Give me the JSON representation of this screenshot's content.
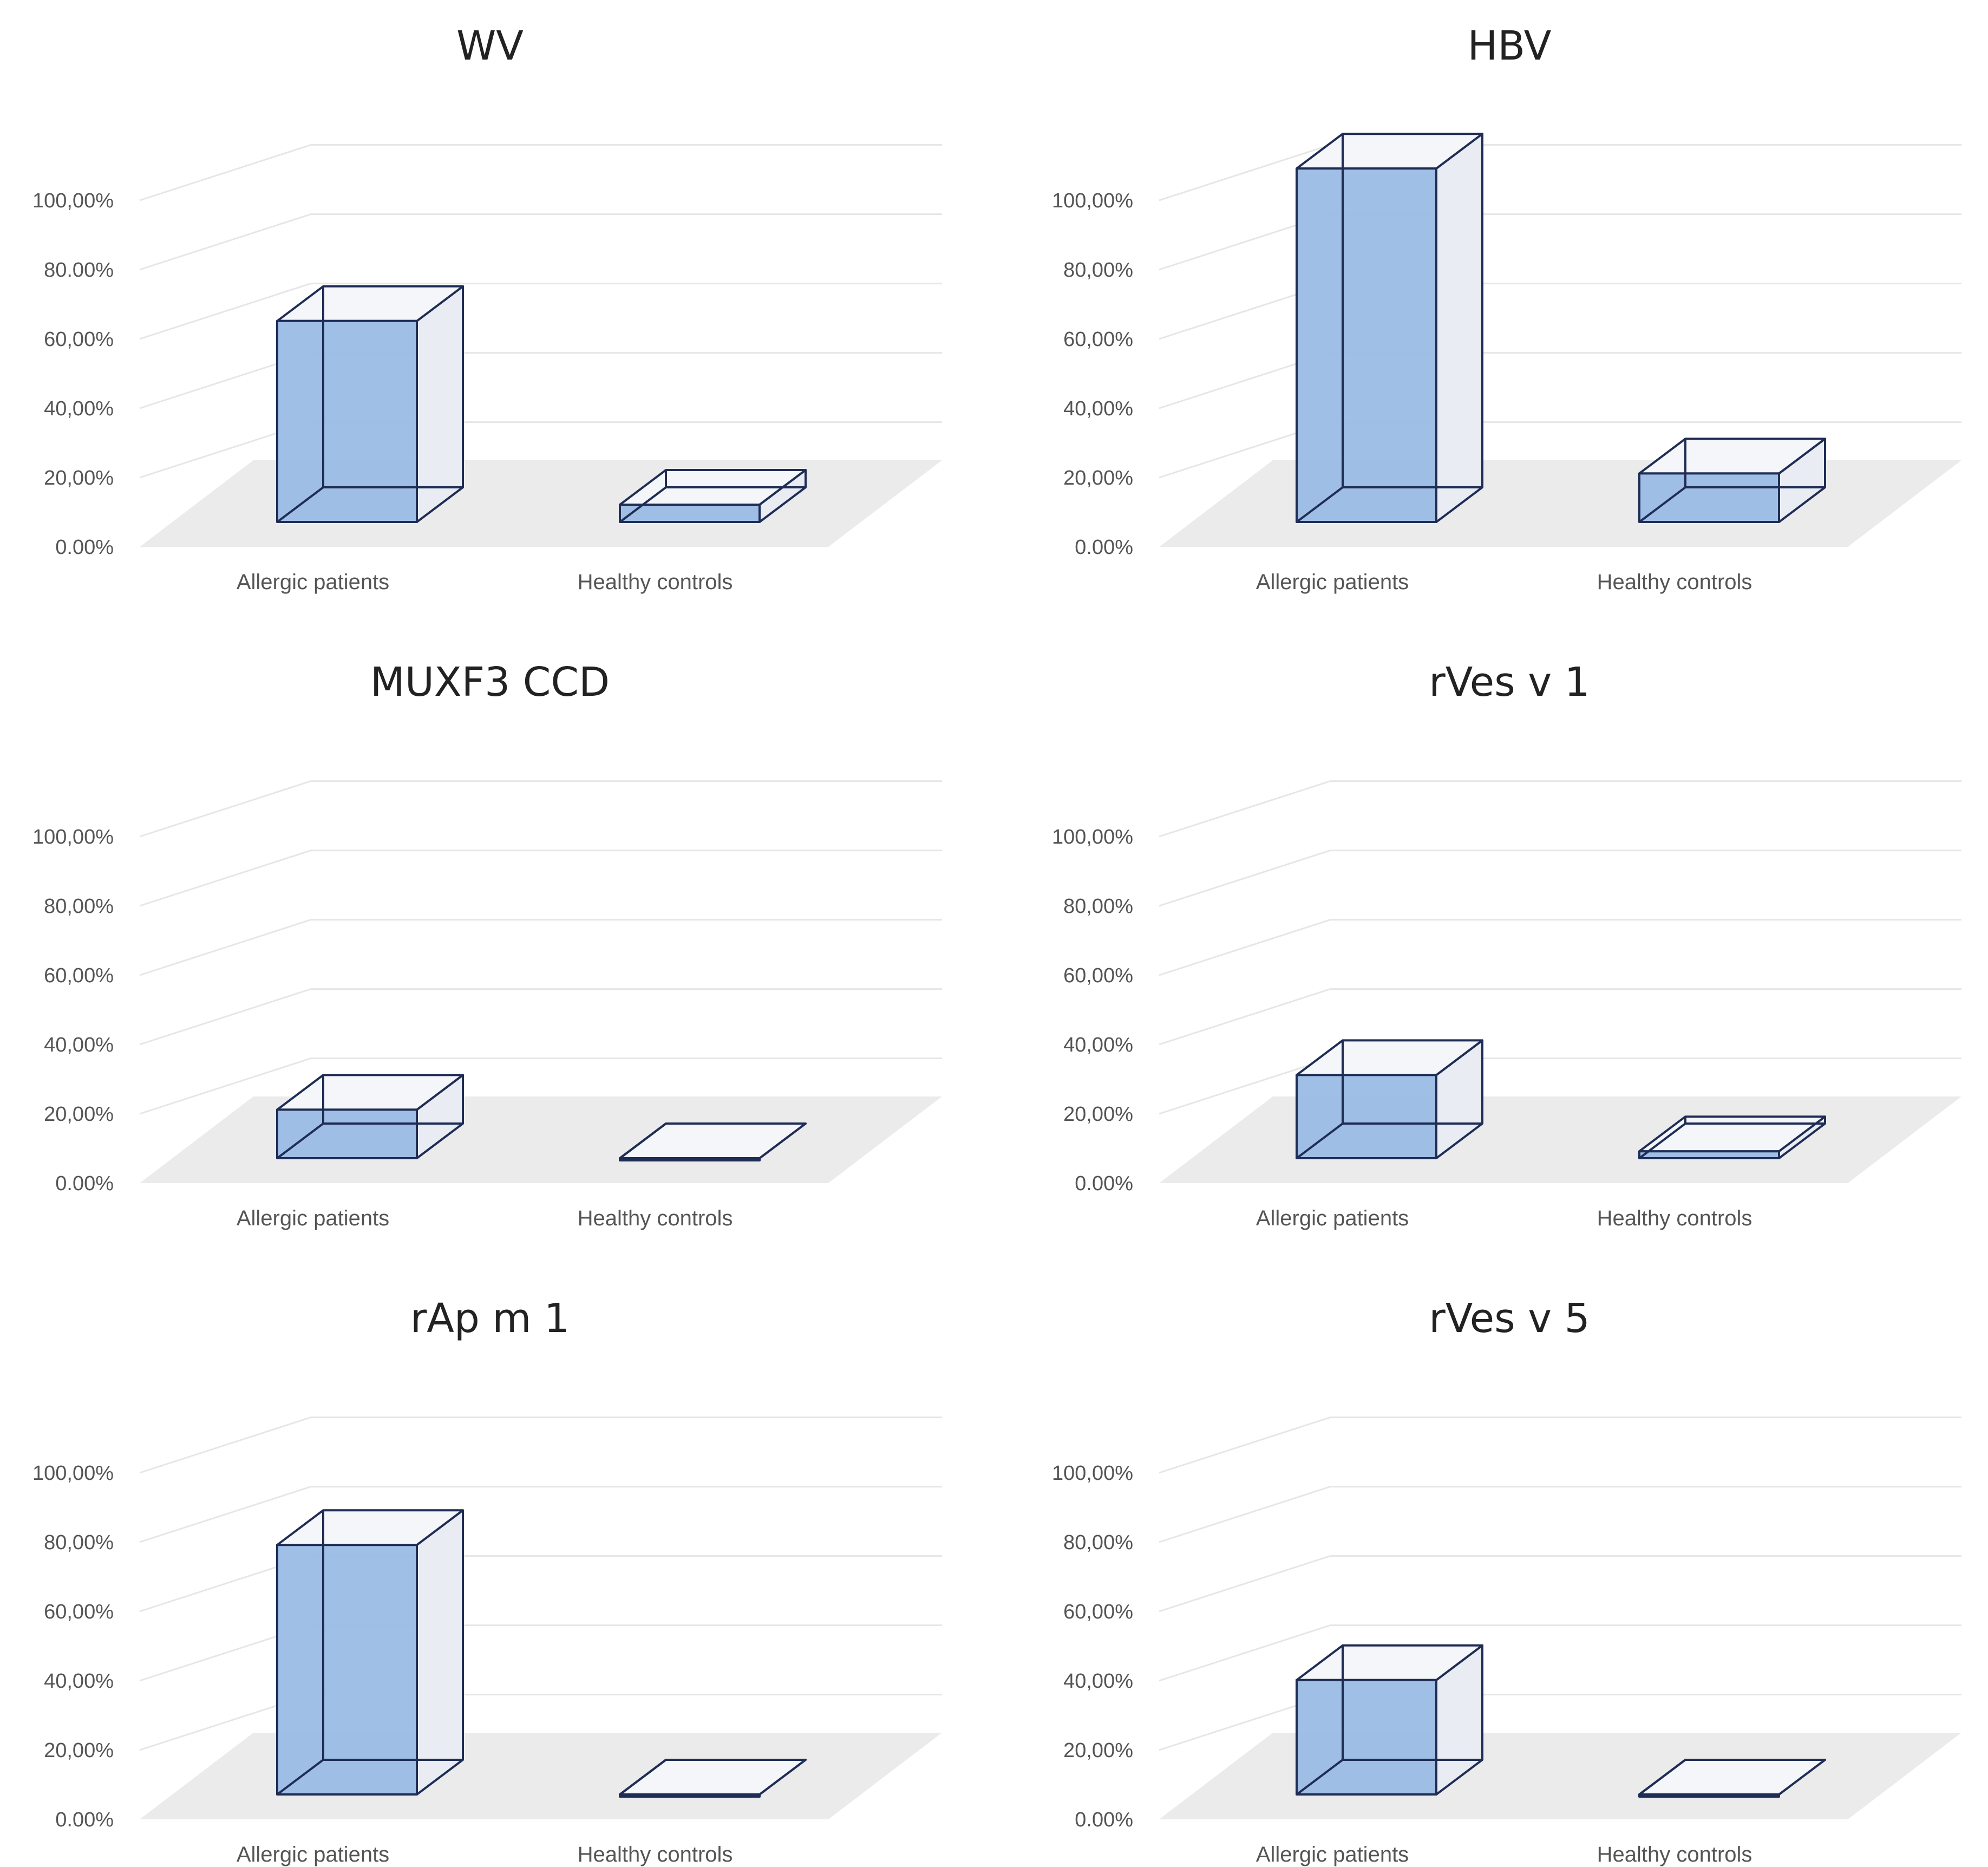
{
  "colors": {
    "bar_fill": "#9bbce6",
    "bar_side": "#e9edf3",
    "bar_top": "#f4f6f9",
    "edge": "#1f2d55",
    "floor": "#ebebeb",
    "grid": "#e6e6e6"
  },
  "chart_data": [
    {
      "type": "bar",
      "title": "WV",
      "categories": [
        "Allergic patients",
        "Healthy controls"
      ],
      "values": [
        58,
        5
      ],
      "ylim": [
        0,
        100
      ],
      "y_ticks": [
        "0.00%",
        "20,00%",
        "40,00%",
        "60,00%",
        "80.00%",
        "100,00%"
      ],
      "grid": true,
      "legend": "none",
      "tick_values": [
        0,
        20,
        40,
        60,
        80,
        100
      ]
    },
    {
      "type": "bar",
      "title": "HBV",
      "categories": [
        "Allergic patients",
        "Healthy controls"
      ],
      "values": [
        102,
        14
      ],
      "ylim": [
        0,
        100
      ],
      "y_ticks": [
        "0.00%",
        "20,00%",
        "40,00%",
        "60,00%",
        "80,00%",
        "100,00%"
      ],
      "grid": true,
      "legend": "none",
      "tick_values": [
        0,
        20,
        40,
        60,
        80,
        100
      ]
    },
    {
      "type": "bar",
      "title": "MUXF3 CCD",
      "categories": [
        "Allergic patients",
        "Healthy controls"
      ],
      "values": [
        14,
        0
      ],
      "ylim": [
        0,
        100
      ],
      "y_ticks": [
        "0.00%",
        "20,00%",
        "40,00%",
        "60,00%",
        "80,00%",
        "100,00%"
      ],
      "grid": true,
      "legend": "none",
      "tick_values": [
        0,
        20,
        40,
        60,
        80,
        100
      ]
    },
    {
      "type": "bar",
      "title": "rVes v 1",
      "categories": [
        "Allergic patients",
        "Healthy controls"
      ],
      "values": [
        24,
        2
      ],
      "ylim": [
        0,
        100
      ],
      "y_ticks": [
        "0.00%",
        "20,00%",
        "40,00%",
        "60,00%",
        "80,00%",
        "100,00%"
      ],
      "grid": true,
      "legend": "none",
      "tick_values": [
        0,
        20,
        40,
        60,
        80,
        100
      ]
    },
    {
      "type": "bar",
      "title": "rAp m 1",
      "categories": [
        "Allergic patients",
        "Healthy controls"
      ],
      "values": [
        72,
        0
      ],
      "ylim": [
        0,
        100
      ],
      "y_ticks": [
        "0.00%",
        "20,00%",
        "40,00%",
        "60,00%",
        "80,00%",
        "100,00%"
      ],
      "grid": true,
      "legend": "none",
      "tick_values": [
        0,
        20,
        40,
        60,
        80,
        100
      ]
    },
    {
      "type": "bar",
      "title": "rVes v 5",
      "categories": [
        "Allergic patients",
        "Healthy controls"
      ],
      "values": [
        33,
        0
      ],
      "ylim": [
        0,
        100
      ],
      "y_ticks": [
        "0.00%",
        "20,00%",
        "40,00%",
        "60,00%",
        "80,00%",
        "100,00%"
      ],
      "grid": true,
      "legend": "none",
      "tick_values": [
        0,
        20,
        40,
        60,
        80,
        100
      ]
    }
  ]
}
